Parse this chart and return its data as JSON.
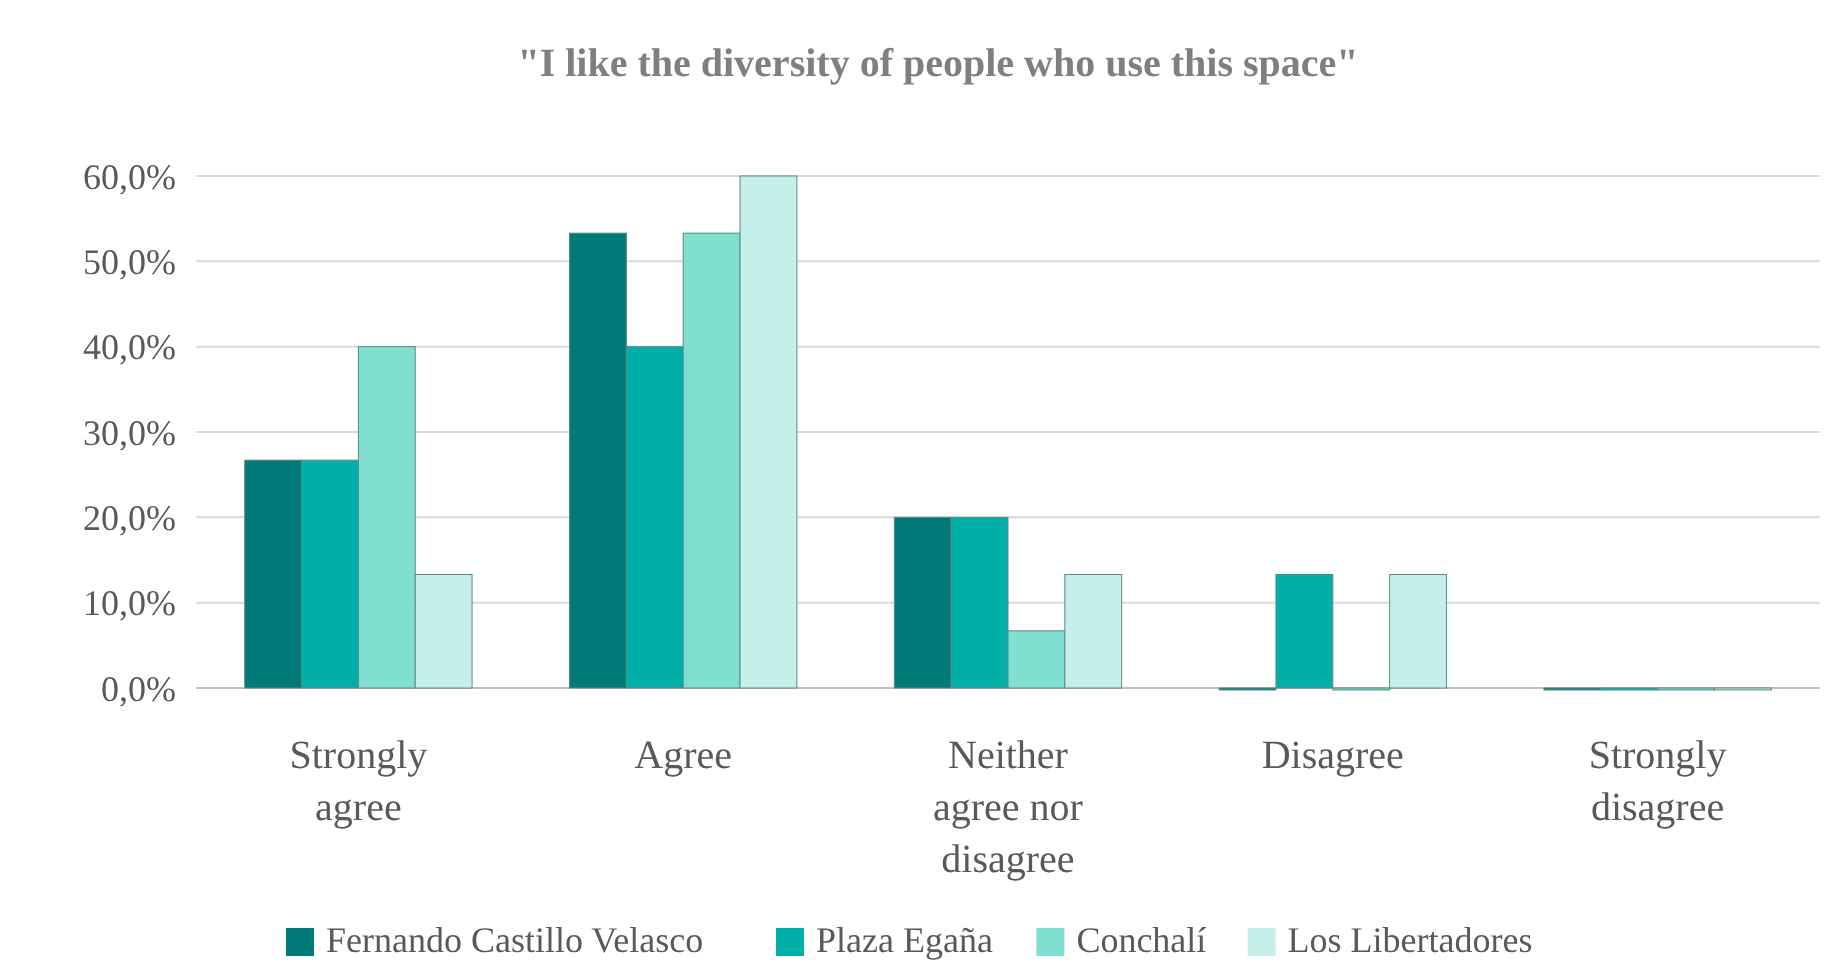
{
  "chart_data": {
    "type": "bar",
    "title": "\"I like the diversity of people who use this space\"",
    "categories": [
      "Strongly agree",
      "Agree",
      "Neither agree nor disagree",
      "Disagree",
      "Strongly disagree"
    ],
    "series": [
      {
        "name": "Fernando Castillo Velasco",
        "color": "#007a78",
        "values": [
          26.7,
          53.3,
          20,
          0,
          0
        ]
      },
      {
        "name": "Plaza Egaña",
        "color": "#00b0a8",
        "values": [
          26.7,
          40,
          20,
          13.3,
          0
        ]
      },
      {
        "name": "Conchalí",
        "color": "#7fdfd0",
        "values": [
          40,
          53.3,
          6.7,
          0,
          0
        ]
      },
      {
        "name": "Los Libertadores",
        "color": "#c5f0ea",
        "values": [
          13.3,
          60,
          13.3,
          13.3,
          0
        ]
      }
    ],
    "ylim": [
      0,
      60
    ],
    "yticks": [
      {
        "value": 0,
        "label": "0,0%"
      },
      {
        "value": 10,
        "label": "10,0%"
      },
      {
        "value": 20,
        "label": "20,0%"
      },
      {
        "value": 30,
        "label": "30,0%"
      },
      {
        "value": 40,
        "label": "40,0%"
      },
      {
        "value": 50,
        "label": "50,0%"
      },
      {
        "value": 60,
        "label": "60,0%"
      }
    ],
    "grid": true,
    "legend": "bottom"
  }
}
